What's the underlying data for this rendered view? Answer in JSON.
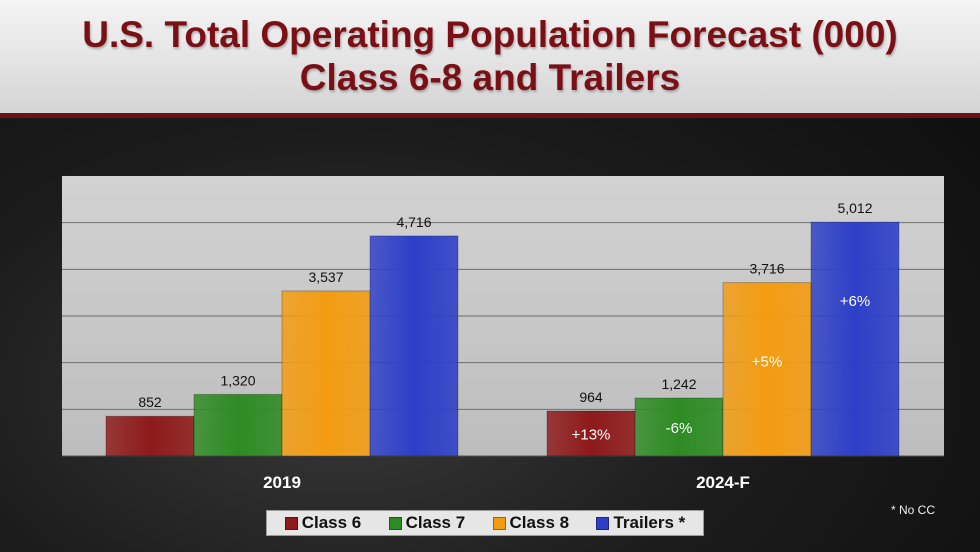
{
  "header": {
    "title_line1": "U.S. Total Operating Population Forecast (000)",
    "title_line2": "Class 6-8 and Trailers"
  },
  "footnote": "* No CC",
  "colors": {
    "title": "#7a1016",
    "plot_background": "#c9c9c9",
    "class6": "#8e1a1a",
    "class7": "#2e8b24",
    "class8": "#f39c12",
    "trailers": "#2d3fc7"
  },
  "chart_data": {
    "type": "bar",
    "categories": [
      "2019",
      "2024-F"
    ],
    "series": [
      {
        "name": "Class 6",
        "values": [
          852,
          964
        ],
        "labels": [
          "852",
          "964"
        ],
        "inner_labels": [
          "",
          "+13%"
        ],
        "color": "#8e1a1a"
      },
      {
        "name": "Class 7",
        "values": [
          1320,
          1242
        ],
        "labels": [
          "1,320",
          "1,242"
        ],
        "inner_labels": [
          "",
          "-6%"
        ],
        "color": "#2e8b24"
      },
      {
        "name": "Class 8",
        "values": [
          3537,
          3716
        ],
        "labels": [
          "3,537",
          "3,716"
        ],
        "inner_labels": [
          "",
          "+5%"
        ],
        "color": "#f39c12"
      },
      {
        "name": "Trailers *",
        "values": [
          4716,
          5012
        ],
        "labels": [
          "4,716",
          "5,012"
        ],
        "inner_labels": [
          "",
          "+6%"
        ],
        "color": "#2d3fc7"
      }
    ],
    "ylim": [
      0,
      6000
    ],
    "grid": true,
    "legend_position": "bottom"
  }
}
